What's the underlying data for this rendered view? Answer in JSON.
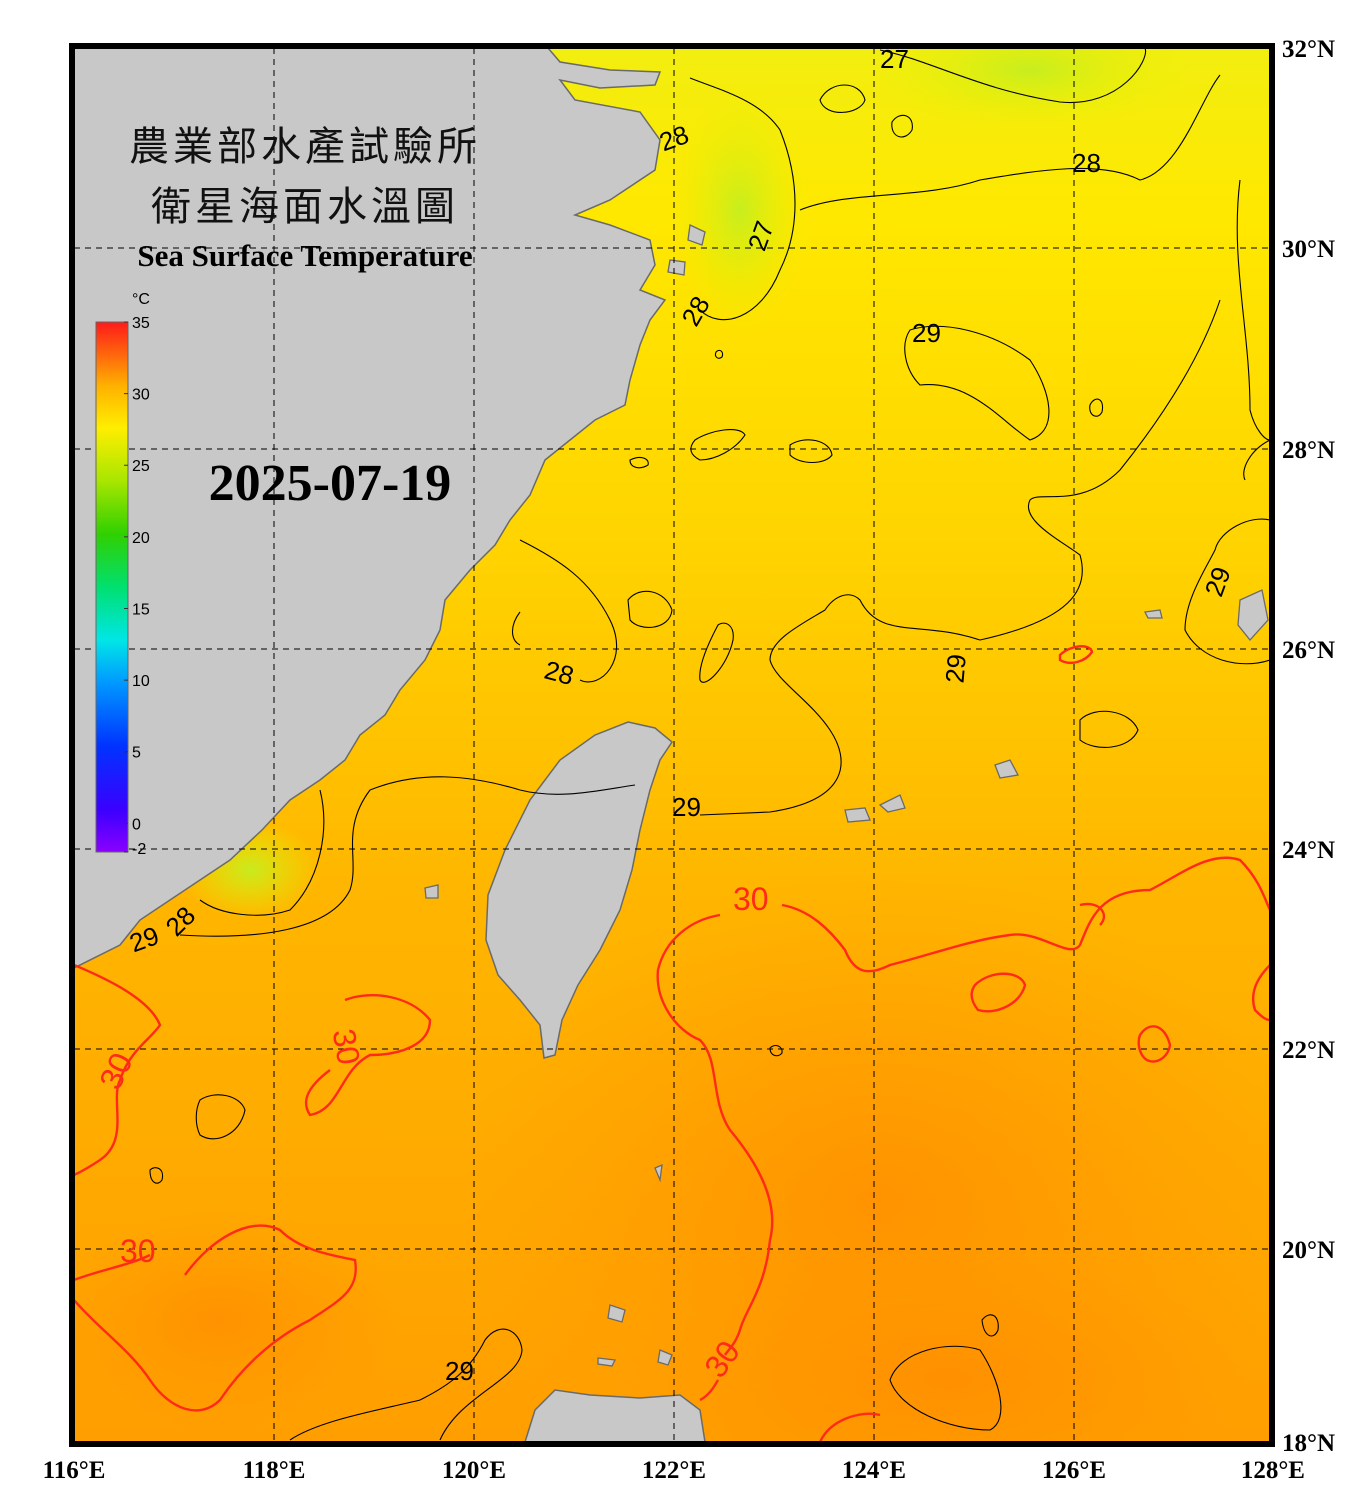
{
  "title": {
    "agency": "農業部水產試驗所",
    "product": "衛星海面水溫圖",
    "english": "Sea Surface Temperature",
    "date": "2025-07-19"
  },
  "colorbar": {
    "unit": "°C",
    "min": -2,
    "max": 35,
    "ticks": [
      "35",
      "30",
      "25",
      "20",
      "15",
      "10",
      "5",
      "0",
      "-2"
    ]
  },
  "axes": {
    "longitude_labels": [
      "116°E",
      "118°E",
      "120°E",
      "122°E",
      "124°E",
      "126°E",
      "128°E"
    ],
    "latitude_labels": [
      "32°N",
      "30°N",
      "28°N",
      "26°N",
      "24°N",
      "22°N",
      "20°N",
      "18°N"
    ],
    "lon_range": [
      116,
      128
    ],
    "lat_range": [
      18,
      32
    ],
    "grid": "dashed"
  },
  "contour_labels": {
    "c27a": "27",
    "c27b": "27",
    "c28a": "28",
    "c28b": "28",
    "c28c": "28",
    "c28d": "28",
    "c28e": "28",
    "c29a": "29",
    "c29b": "29",
    "c29c": "29",
    "c29d": "29",
    "c29e": "29",
    "c29f": "29",
    "c30a": "30",
    "c30b": "30",
    "c30c": "30",
    "c30d": "30",
    "c30e": "30"
  },
  "colors": {
    "land": "#c8c8c8",
    "coastline": "#6a6a6a",
    "sea_cool": "#e8ef1a",
    "sea_warm": "#ffd200",
    "sea_hot": "#ffa000",
    "contour_30": "#ff2a1a",
    "frame": "#000000"
  }
}
